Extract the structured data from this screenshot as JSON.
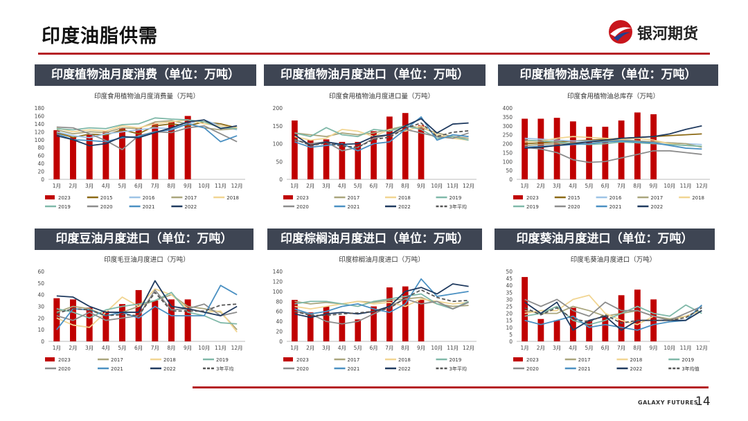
{
  "header": {
    "title": "印度油脂供需",
    "brand_name": "银河期货",
    "brand_color": "#b51e25",
    "footer_brand": "GALAXY FUTURES",
    "page_number": "14"
  },
  "chart_data": [
    {
      "type": "bar+line",
      "panel_header": "印度植物油月度消费（单位：万吨）",
      "title": "印度食用植物油月度消费量（万吨）",
      "xlabel": "",
      "ylabel": "",
      "ylim": [
        0,
        180
      ],
      "yticks": [
        0,
        20,
        40,
        60,
        80,
        100,
        120,
        140,
        160,
        180
      ],
      "categories": [
        "1月",
        "2月",
        "3月",
        "4月",
        "5月",
        "6月",
        "7月",
        "8月",
        "9月",
        "10月",
        "11月",
        "12月"
      ],
      "bar_series": {
        "name": "2023",
        "color": "#c00000",
        "values": [
          124,
          106,
          112,
          121,
          130,
          130,
          142,
          145,
          160,
          null,
          null,
          null
        ]
      },
      "series": [
        {
          "name": "2015",
          "color": "#8b6914",
          "dash": "",
          "values": [
            118,
            106,
            114,
            112,
            125,
            115,
            135,
            140,
            135,
            145,
            140,
            130
          ]
        },
        {
          "name": "2016",
          "color": "#9dc3e6",
          "dash": "",
          "values": [
            120,
            110,
            105,
            115,
            120,
            125,
            130,
            128,
            140,
            150,
            135,
            125
          ]
        },
        {
          "name": "2017",
          "color": "#a9a57c",
          "dash": "",
          "values": [
            125,
            115,
            120,
            118,
            130,
            128,
            145,
            148,
            140,
            130,
            125,
            128
          ]
        },
        {
          "name": "2018",
          "color": "#f1d592",
          "dash": "",
          "values": [
            130,
            120,
            125,
            122,
            135,
            130,
            140,
            145,
            150,
            140,
            135,
            130
          ]
        },
        {
          "name": "2019",
          "color": "#7fb8a8",
          "dash": "",
          "values": [
            128,
            125,
            130,
            128,
            138,
            140,
            155,
            152,
            150,
            145,
            130,
            128
          ]
        },
        {
          "name": "2020",
          "color": "#8c8c8c",
          "dash": "",
          "values": [
            132,
            130,
            115,
            98,
            75,
            110,
            120,
            118,
            130,
            135,
            115,
            95
          ]
        },
        {
          "name": "2021",
          "color": "#4a90c2",
          "dash": "",
          "values": [
            115,
            100,
            98,
            95,
            105,
            108,
            120,
            125,
            140,
            130,
            95,
            110
          ]
        },
        {
          "name": "2022",
          "color": "#1f3a5f",
          "dash": "",
          "values": [
            110,
            100,
            85,
            90,
            108,
            105,
            118,
            130,
            145,
            150,
            128,
            135
          ]
        }
      ]
    },
    {
      "type": "bar+line",
      "panel_header": "印度植物油月度进口（单位：万吨）",
      "title": "印度食用植物油月度进口量（万吨）",
      "xlabel": "",
      "ylabel": "",
      "ylim": [
        0,
        200
      ],
      "yticks": [
        0,
        50,
        100,
        150,
        200
      ],
      "categories": [
        "1月",
        "2月",
        "3月",
        "4月",
        "5月",
        "6月",
        "7月",
        "8月",
        "9月",
        "10月",
        "11月",
        "12月"
      ],
      "bar_series": {
        "name": "2023",
        "color": "#c00000",
        "values": [
          165,
          110,
          112,
          105,
          105,
          135,
          176,
          186,
          152,
          null,
          null,
          null
        ]
      },
      "series": [
        {
          "name": "2017",
          "color": "#a9a57c",
          "dash": "",
          "values": [
            130,
            125,
            120,
            130,
            125,
            130,
            140,
            150,
            145,
            130,
            120,
            115
          ]
        },
        {
          "name": "2018",
          "color": "#f1d592",
          "dash": "",
          "values": [
            120,
            110,
            115,
            140,
            135,
            120,
            140,
            135,
            150,
            125,
            115,
            110
          ]
        },
        {
          "name": "2019",
          "color": "#7fb8a8",
          "dash": "",
          "values": [
            130,
            120,
            145,
            125,
            120,
            140,
            135,
            150,
            140,
            115,
            120,
            110
          ]
        },
        {
          "name": "2020",
          "color": "#8c8c8c",
          "dash": "",
          "values": [
            110,
            100,
            105,
            80,
            90,
            115,
            125,
            140,
            130,
            120,
            115,
            130
          ]
        },
        {
          "name": "2021",
          "color": "#4a90c2",
          "dash": "",
          "values": [
            105,
            90,
            95,
            100,
            80,
            100,
            105,
            140,
            175,
            110,
            125,
            120
          ]
        },
        {
          "name": "2022",
          "color": "#1f3a5f",
          "dash": "",
          "values": [
            125,
            95,
            105,
            98,
            100,
            120,
            125,
            150,
            170,
            130,
            155,
            158
          ]
        },
        {
          "name": "3年平均",
          "color": "#555555",
          "dash": "5,3",
          "values": [
            113,
            95,
            102,
            93,
            90,
            112,
            118,
            143,
            158,
            120,
            132,
            136
          ]
        }
      ]
    },
    {
      "type": "bar+line",
      "panel_header": "印度植物油总库存（单位：万吨）",
      "title": "印度食用植物油总库存（万吨）",
      "xlabel": "",
      "ylabel": "",
      "ylim": [
        0,
        400
      ],
      "yticks": [
        0,
        50,
        100,
        150,
        200,
        250,
        300,
        350,
        400
      ],
      "categories": [
        "1月",
        "2月",
        "3月",
        "4月",
        "5月",
        "6月",
        "7月",
        "8月",
        "9月",
        "10月",
        "11月",
        "12月"
      ],
      "bar_series": {
        "name": "2023",
        "color": "#c00000",
        "values": [
          340,
          340,
          345,
          325,
          295,
          295,
          330,
          375,
          365,
          null,
          null,
          null
        ]
      },
      "series": [
        {
          "name": "2015",
          "color": "#8b6914",
          "dash": "",
          "values": [
            200,
            205,
            210,
            215,
            220,
            225,
            230,
            235,
            240,
            245,
            250,
            255
          ]
        },
        {
          "name": "2016",
          "color": "#9dc3e6",
          "dash": "",
          "values": [
            230,
            225,
            220,
            215,
            215,
            220,
            225,
            215,
            210,
            205,
            200,
            195
          ]
        },
        {
          "name": "2017",
          "color": "#a9a57c",
          "dash": "",
          "values": [
            190,
            195,
            200,
            205,
            210,
            215,
            220,
            215,
            210,
            205,
            200,
            180
          ]
        },
        {
          "name": "2018",
          "color": "#f1d592",
          "dash": "",
          "values": [
            210,
            215,
            230,
            240,
            235,
            230,
            225,
            230,
            220,
            200,
            190,
            185
          ]
        },
        {
          "name": "2019",
          "color": "#7fb8a8",
          "dash": "",
          "values": [
            220,
            215,
            210,
            200,
            195,
            200,
            210,
            205,
            200,
            195,
            190,
            185
          ]
        },
        {
          "name": "2020",
          "color": "#8c8c8c",
          "dash": "",
          "values": [
            180,
            170,
            150,
            110,
            95,
            100,
            120,
            140,
            160,
            160,
            150,
            140
          ]
        },
        {
          "name": "2021",
          "color": "#4a90c2",
          "dash": "",
          "values": [
            180,
            185,
            190,
            195,
            200,
            210,
            215,
            210,
            205,
            190,
            175,
            170
          ]
        },
        {
          "name": "2022",
          "color": "#1f3a5f",
          "dash": "",
          "values": [
            175,
            180,
            190,
            200,
            210,
            220,
            230,
            235,
            240,
            255,
            280,
            300
          ]
        }
      ]
    },
    {
      "type": "bar+line",
      "panel_header": "印度豆油月度进口（单位：万吨）",
      "title": "印度毛豆油月度进口（万吨）",
      "xlabel": "",
      "ylabel": "",
      "ylim": [
        0,
        60
      ],
      "yticks": [
        0,
        10,
        20,
        30,
        40,
        50,
        60
      ],
      "categories": [
        "1月",
        "2月",
        "3月",
        "4月",
        "5月",
        "6月",
        "7月",
        "8月",
        "9月",
        "10月",
        "11月",
        "12月"
      ],
      "bar_series": {
        "name": "2023",
        "color": "#c00000",
        "values": [
          37,
          36,
          29,
          26,
          32,
          44,
          35,
          36,
          36,
          null,
          null,
          null
        ]
      },
      "series": [
        {
          "name": "2017",
          "color": "#a9a57c",
          "dash": "",
          "values": [
            25,
            30,
            28,
            22,
            25,
            30,
            35,
            40,
            30,
            28,
            25,
            10
          ]
        },
        {
          "name": "2018",
          "color": "#f1d592",
          "dash": "",
          "values": [
            20,
            14,
            12,
            25,
            38,
            30,
            45,
            40,
            28,
            25,
            26,
            8
          ]
        },
        {
          "name": "2019",
          "color": "#7fb8a8",
          "dash": "",
          "values": [
            28,
            25,
            20,
            27,
            30,
            32,
            35,
            42,
            25,
            22,
            16,
            15
          ]
        },
        {
          "name": "2020",
          "color": "#8c8c8c",
          "dash": "",
          "values": [
            22,
            18,
            25,
            18,
            20,
            22,
            44,
            27,
            28,
            32,
            22,
            25
          ]
        },
        {
          "name": "2021",
          "color": "#4a90c2",
          "dash": "",
          "values": [
            10,
            28,
            27,
            22,
            25,
            20,
            30,
            22,
            22,
            22,
            48,
            40
          ]
        },
        {
          "name": "2022",
          "color": "#1f3a5f",
          "dash": "",
          "values": [
            39,
            38,
            30,
            25,
            25,
            25,
            52,
            30,
            28,
            25,
            22,
            30
          ]
        },
        {
          "name": "3年平均",
          "color": "#555555",
          "dash": "5,3",
          "values": [
            24,
            28,
            27,
            22,
            23,
            22,
            42,
            26,
            26,
            26,
            31,
            32
          ]
        }
      ]
    },
    {
      "type": "bar+line",
      "panel_header": "印度棕榈油月度进口（单位：万吨）",
      "title": "印度棕榈油月度进口（万吨）",
      "xlabel": "",
      "ylabel": "",
      "ylim": [
        0,
        140
      ],
      "yticks": [
        0,
        20,
        40,
        60,
        80,
        100,
        120,
        140
      ],
      "categories": [
        "1月",
        "2月",
        "3月",
        "4月",
        "5月",
        "6月",
        "7月",
        "8月",
        "9月",
        "10月",
        "11月",
        "12月"
      ],
      "bar_series": {
        "name": "2023",
        "color": "#c00000",
        "values": [
          83,
          58,
          70,
          51,
          44,
          70,
          108,
          110,
          83,
          null,
          null,
          null
        ]
      },
      "series": [
        {
          "name": "2017",
          "color": "#a9a57c",
          "dash": "",
          "values": [
            80,
            75,
            78,
            75,
            80,
            78,
            82,
            85,
            88,
            75,
            70,
            72
          ]
        },
        {
          "name": "2018",
          "color": "#f1d592",
          "dash": "",
          "values": [
            70,
            65,
            70,
            75,
            80,
            75,
            78,
            70,
            85,
            80,
            75,
            78
          ]
        },
        {
          "name": "2019",
          "color": "#7fb8a8",
          "dash": "",
          "values": [
            75,
            80,
            80,
            75,
            70,
            80,
            85,
            90,
            95,
            75,
            65,
            80
          ]
        },
        {
          "name": "2020",
          "color": "#8c8c8c",
          "dash": "",
          "values": [
            60,
            55,
            40,
            35,
            40,
            55,
            70,
            85,
            75,
            80,
            65,
            78
          ]
        },
        {
          "name": "2021",
          "color": "#4a90c2",
          "dash": "",
          "values": [
            65,
            55,
            60,
            70,
            75,
            65,
            58,
            75,
            125,
            90,
            95,
            100
          ]
        },
        {
          "name": "2022",
          "color": "#1f3a5f",
          "dash": "",
          "values": [
            55,
            48,
            55,
            58,
            55,
            60,
            70,
            100,
            108,
            95,
            115,
            110
          ]
        },
        {
          "name": "3年平均",
          "color": "#555555",
          "dash": "5,3",
          "values": [
            60,
            52,
            52,
            55,
            57,
            60,
            66,
            87,
            103,
            88,
            80,
            82
          ]
        }
      ]
    },
    {
      "type": "bar+line",
      "panel_header": "印度葵油月度进口（单位：万吨）",
      "title": "印度毛葵油月度进口（万吨）",
      "xlabel": "",
      "ylabel": "",
      "ylim": [
        0,
        50
      ],
      "yticks": [
        0,
        5,
        10,
        15,
        20,
        25,
        30,
        35,
        40,
        45,
        50
      ],
      "categories": [
        "1月",
        "2月",
        "3月",
        "4月",
        "5月",
        "6月",
        "7月",
        "8月",
        "9月",
        "10月",
        "11月",
        "12月"
      ],
      "bar_series": {
        "name": "2023",
        "color": "#c00000",
        "values": [
          46,
          16,
          15,
          24,
          15,
          18,
          33,
          37,
          30,
          null,
          null,
          null
        ]
      },
      "series": [
        {
          "name": "2017",
          "color": "#a9a57c",
          "dash": "",
          "values": [
            22,
            20,
            20,
            25,
            22,
            18,
            20,
            22,
            18,
            16,
            18,
            22
          ]
        },
        {
          "name": "2018",
          "color": "#f1d592",
          "dash": "",
          "values": [
            20,
            22,
            22,
            30,
            33,
            20,
            15,
            12,
            18,
            15,
            18,
            22
          ]
        },
        {
          "name": "2019",
          "color": "#7fb8a8",
          "dash": "",
          "values": [
            18,
            20,
            25,
            15,
            12,
            15,
            20,
            25,
            20,
            18,
            26,
            20
          ]
        },
        {
          "name": "2020",
          "color": "#8c8c8c",
          "dash": "",
          "values": [
            30,
            25,
            30,
            22,
            18,
            28,
            22,
            22,
            18,
            15,
            20,
            25
          ]
        },
        {
          "name": "2021",
          "color": "#4a90c2",
          "dash": "",
          "values": [
            15,
            12,
            15,
            18,
            10,
            12,
            10,
            8,
            12,
            14,
            15,
            26
          ]
        },
        {
          "name": "2022",
          "color": "#1f3a5f",
          "dash": "",
          "values": [
            28,
            20,
            28,
            8,
            15,
            18,
            8,
            15,
            15,
            15,
            15,
            22
          ]
        },
        {
          "name": "3年均值",
          "color": "#555555",
          "dash": "5,3",
          "values": [
            24,
            19,
            24,
            16,
            14,
            19,
            13,
            15,
            15,
            15,
            17,
            24
          ]
        }
      ]
    }
  ]
}
